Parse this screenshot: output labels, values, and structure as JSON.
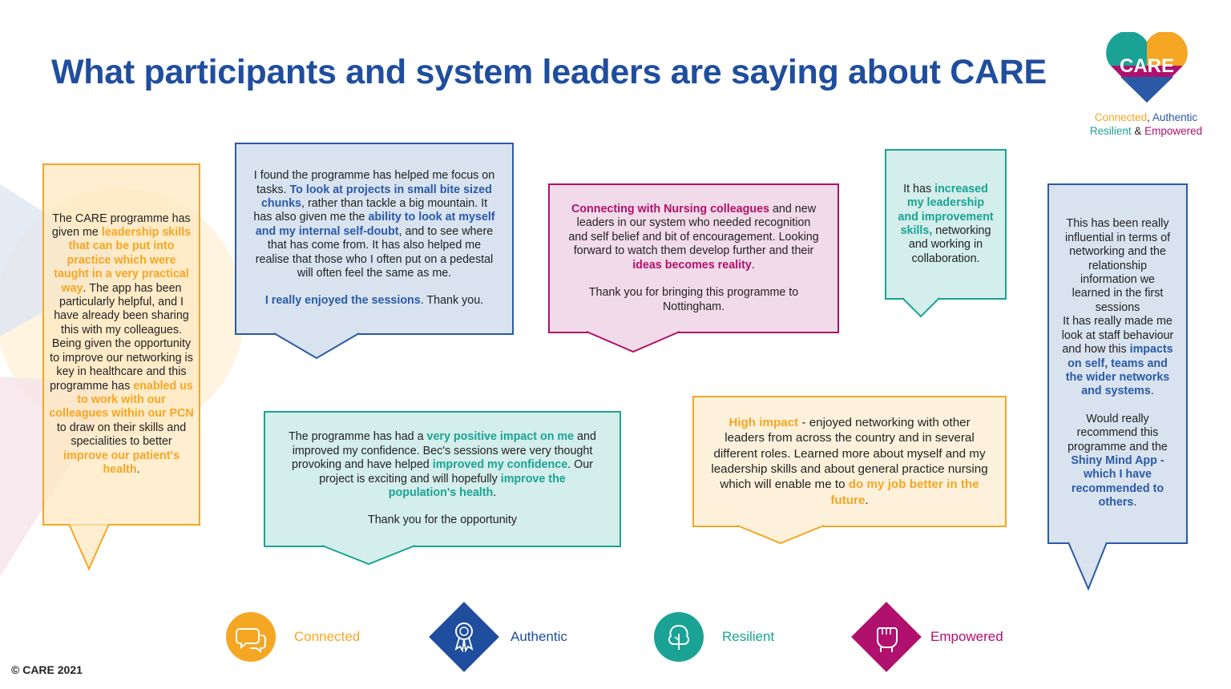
{
  "slide": {
    "title": "What participants and system leaders are saying about CARE",
    "copyright": "© CARE 2021"
  },
  "logo": {
    "text": "CARE",
    "tagline": {
      "w1": "Connected",
      "sep1": ", ",
      "w2": "Authentic",
      "w3": "Resilient",
      "sep2": " & ",
      "w4": "Empowered"
    },
    "colors": {
      "orange": "#f5a623",
      "blue": "#2a5aa6",
      "teal": "#1aa394",
      "pink": "#b0106e"
    }
  },
  "quotes": {
    "q1": [
      {
        "t": "The CARE programme has given me ",
        "h": ""
      },
      {
        "t": "leadership skills that can be put into practice which were taught in a very practical way",
        "h": "or"
      },
      {
        "t": ". The app has been particularly helpful, and I have already been sharing this with my colleagues. Being given the opportunity to improve our networking is key in healthcare and this programme has ",
        "h": ""
      },
      {
        "t": "enabled us to work with our colleagues within our PCN",
        "h": "or"
      },
      {
        "t": " to draw on their skills and specialities to better ",
        "h": ""
      },
      {
        "t": "improve our patient's health",
        "h": "or"
      },
      {
        "t": ".",
        "h": ""
      }
    ],
    "q2a": [
      {
        "t": "I found the programme has helped me focus on tasks. ",
        "h": ""
      },
      {
        "t": "To look at projects in small bite sized chunks",
        "h": "bl"
      },
      {
        "t": ", rather than tackle a big mountain. It has also given me the ",
        "h": ""
      },
      {
        "t": "ability to look at myself and my internal self-doubt",
        "h": "bl"
      },
      {
        "t": ", and to see where that has come from. It has also helped me realise that those who I often put on a pedestal will often feel the same as me.",
        "h": ""
      }
    ],
    "q2b": [
      {
        "t": "I really enjoyed the sessions",
        "h": "bl"
      },
      {
        "t": ". Thank you.",
        "h": ""
      }
    ],
    "q3a": [
      {
        "t": "Connecting with Nursing colleagues",
        "h": "pk"
      },
      {
        "t": " and new leaders in our system who needed recognition and self belief and bit of encouragement. Looking forward to watch them develop further and their ",
        "h": ""
      },
      {
        "t": "ideas becomes reality",
        "h": "pk"
      },
      {
        "t": ".",
        "h": ""
      }
    ],
    "q3b": [
      {
        "t": "Thank you for bringing this programme to Nottingham.",
        "h": ""
      }
    ],
    "q4": [
      {
        "t": "It has ",
        "h": ""
      },
      {
        "t": "increased my leadership and improvement skills,",
        "h": "tl"
      },
      {
        "t": " networking and working in collaboration.",
        "h": ""
      }
    ],
    "q5a": [
      {
        "t": "This has been really influential in terms of networking and the relationship information we learned in the first sessions",
        "h": ""
      }
    ],
    "q5b": [
      {
        "t": "It has really made me look at staff behaviour and how this ",
        "h": ""
      },
      {
        "t": "impacts on self, teams and the wider networks and systems",
        "h": "bl"
      },
      {
        "t": ".",
        "h": ""
      }
    ],
    "q5c": [
      {
        "t": "Would really recommend this programme and the ",
        "h": ""
      },
      {
        "t": "Shiny Mind App - which I have recommended to others",
        "h": "bl"
      },
      {
        "t": ".",
        "h": ""
      }
    ],
    "q6a": [
      {
        "t": "The programme has had a ",
        "h": ""
      },
      {
        "t": "very positive impact on me",
        "h": "tl"
      },
      {
        "t": " and improved my confidence. Bec's sessions were very thought provoking and have helped ",
        "h": ""
      },
      {
        "t": "improved my confidence",
        "h": "tl"
      },
      {
        "t": ". Our project is exciting and will hopefully ",
        "h": ""
      },
      {
        "t": "improve the population's health",
        "h": "tl"
      },
      {
        "t": ".",
        "h": ""
      }
    ],
    "q6b": [
      {
        "t": "Thank you for the opportunity",
        "h": ""
      }
    ],
    "q7": [
      {
        "t": "High impact",
        "h": "or"
      },
      {
        "t": " - enjoyed networking with other leaders from across the country and in several different roles. Learned more about myself and my leadership skills and about general practice nursing which will enable me to ",
        "h": ""
      },
      {
        "t": "do my job better in the future",
        "h": "or"
      },
      {
        "t": ".",
        "h": ""
      }
    ]
  },
  "values": [
    {
      "label": "Connected",
      "icon": "speech-bubbles-icon",
      "color": "#f5a623"
    },
    {
      "label": "Authentic",
      "icon": "rosette-icon",
      "color": "#1f4e9e"
    },
    {
      "label": "Resilient",
      "icon": "tree-icon",
      "color": "#1aa394"
    },
    {
      "label": "Empowered",
      "icon": "fist-icon",
      "color": "#b0106e"
    }
  ]
}
